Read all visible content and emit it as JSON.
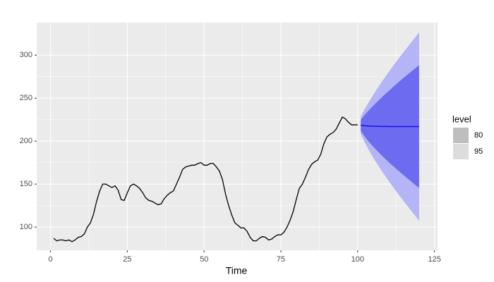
{
  "chart_data": {
    "type": "line",
    "x_label": "Time",
    "xlim": [
      -4.5,
      126
    ],
    "xticks": [
      0,
      25,
      50,
      75,
      100,
      125
    ],
    "ylim": [
      73,
      338
    ],
    "yticks": [
      100,
      150,
      200,
      250,
      300
    ],
    "grid": true,
    "series": [
      {
        "color": "#000000",
        "x": [
          1,
          2,
          3,
          4,
          5,
          6,
          7,
          8,
          9,
          10,
          11,
          12,
          13,
          14,
          15,
          16,
          17,
          18,
          19,
          20,
          21,
          22,
          23,
          24,
          25,
          26,
          27,
          28,
          29,
          30,
          31,
          32,
          33,
          34,
          35,
          36,
          37,
          38,
          39,
          40,
          41,
          42,
          43,
          44,
          45,
          46,
          47,
          48,
          49,
          50,
          51,
          52,
          53,
          54,
          55,
          56,
          57,
          58,
          59,
          60,
          61,
          62,
          63,
          64,
          65,
          66,
          67,
          68,
          69,
          70,
          71,
          72,
          73,
          74,
          75,
          76,
          77,
          78,
          79,
          80,
          81,
          82,
          83,
          84,
          85,
          86,
          87,
          88,
          89,
          90,
          91,
          92,
          93,
          94,
          95,
          96,
          97,
          98,
          99,
          100
        ],
        "values": [
          87,
          84,
          85,
          85,
          84,
          85,
          83,
          85,
          88,
          89,
          92,
          100,
          105,
          115,
          130,
          142,
          150,
          150,
          148,
          146,
          148,
          143,
          132,
          131,
          140,
          148,
          150,
          148,
          145,
          140,
          134,
          131,
          130,
          128,
          126,
          127,
          133,
          137,
          140,
          142,
          150,
          158,
          167,
          170,
          171,
          172,
          172,
          174,
          175,
          172,
          172,
          174,
          174,
          170,
          165,
          155,
          138,
          125,
          114,
          105,
          102,
          99,
          99,
          95,
          88,
          84,
          84,
          87,
          89,
          88,
          85,
          86,
          89,
          91,
          91,
          94,
          100,
          108,
          118,
          132,
          145,
          150,
          158,
          167,
          173,
          176,
          178,
          185,
          197,
          205,
          208,
          210,
          214,
          221,
          228,
          226,
          222,
          219,
          219,
          219
        ]
      }
    ],
    "forecast": {
      "x": [
        101,
        102,
        103,
        104,
        105,
        106,
        107,
        108,
        109,
        110,
        111,
        112,
        113,
        114,
        115,
        116,
        117,
        118,
        119,
        120
      ],
      "mean": [
        218.5,
        218.0,
        217.7,
        217.5,
        217.4,
        217.3,
        217.2,
        217.1,
        217.1,
        217.0,
        217,
        217,
        217,
        217,
        217,
        217,
        217,
        217,
        217,
        217
      ],
      "mean_color": "#1010e8",
      "intervals": [
        {
          "color": "#b4b4f6",
          "lower": [
            208.5,
            200.7,
            193.7,
            187.3,
            181.3,
            175.5,
            169.9,
            164.5,
            159.3,
            154.1,
            149.1,
            144.3,
            139.5,
            134.8,
            130.1,
            125.5,
            121.0,
            116.5,
            112.0,
            107.5
          ],
          "upper": [
            228.5,
            235.3,
            241.7,
            247.7,
            253.5,
            259.1,
            264.5,
            269.7,
            274.9,
            279.9,
            284.9,
            289.7,
            294.5,
            299.2,
            303.9,
            308.5,
            313.0,
            317.5,
            322.0,
            326.5
          ]
        },
        {
          "color": "#6d6cf0",
          "lower": [
            212.0,
            206.7,
            202.0,
            197.8,
            193.8,
            190.0,
            186.3,
            182.8,
            179.3,
            176.0,
            172.7,
            169.5,
            166.4,
            163.3,
            160.2,
            157.2,
            154.3,
            151.4,
            148.4,
            145.5
          ],
          "upper": [
            225.0,
            229.3,
            233.4,
            237.2,
            241.0,
            244.6,
            248.1,
            251.4,
            254.9,
            258.0,
            261.3,
            264.5,
            267.6,
            270.7,
            273.8,
            276.8,
            279.7,
            282.6,
            285.6,
            288.5
          ]
        }
      ]
    },
    "legend": {
      "title": "level",
      "position": "right",
      "entries": [
        {
          "label": "80",
          "color": "#bebebe"
        },
        {
          "label": "95",
          "color": "#dcdcdc"
        }
      ]
    }
  }
}
